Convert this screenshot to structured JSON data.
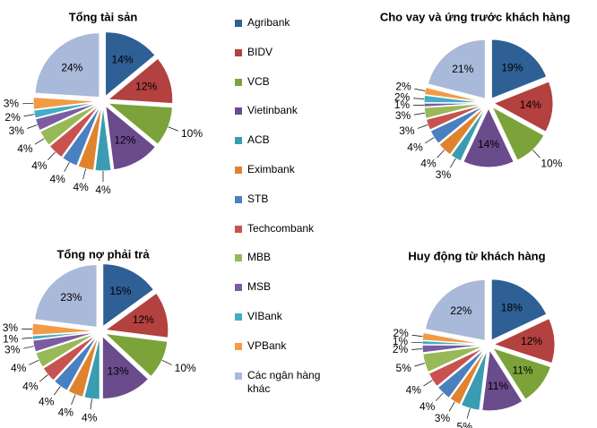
{
  "chart_data": [
    {
      "type": "pie",
      "title": "Tổng tài sản",
      "categories": [
        "Agribank",
        "BIDV",
        "VCB",
        "Vietinbank",
        "ACB",
        "Eximbank",
        "STB",
        "Techcombank",
        "MBB",
        "MSB",
        "VIBank",
        "VPBank",
        "Các ngân hàng khác"
      ],
      "colors": [
        "#2e5f95",
        "#b2413f",
        "#7ba33a",
        "#6a4b8c",
        "#3a9cb2",
        "#e0832f",
        "#4a7fc0",
        "#c8524f",
        "#97b958",
        "#7b5ca0",
        "#42adc6",
        "#f39a45",
        "#a9b9d9"
      ],
      "values": [
        14,
        12,
        10,
        12,
        4,
        4,
        4,
        4,
        4,
        3,
        2,
        3,
        24
      ],
      "value_labels": [
        "14%",
        "12%",
        "10%",
        "12%",
        "4%",
        "4%",
        "4%",
        "4%",
        "4%",
        "3%",
        "2%",
        "3%",
        "24%"
      ]
    },
    {
      "type": "pie",
      "title": "Cho vay và ứng trước khách hàng",
      "categories": [
        "Agribank",
        "BIDV",
        "VCB",
        "Vietinbank",
        "ACB",
        "Eximbank",
        "STB",
        "Techcombank",
        "MBB",
        "MSB",
        "VIBank",
        "VPBank",
        "Các ngân hàng khác"
      ],
      "colors": [
        "#2e5f95",
        "#b2413f",
        "#7ba33a",
        "#6a4b8c",
        "#3a9cb2",
        "#e0832f",
        "#4a7fc0",
        "#c8524f",
        "#97b958",
        "#7b5ca0",
        "#42adc6",
        "#f39a45",
        "#a9b9d9"
      ],
      "values": [
        19,
        14,
        10,
        14,
        3,
        4,
        4,
        3,
        3,
        1,
        2,
        2,
        21
      ],
      "value_labels": [
        "19%",
        "14%",
        "10%",
        "14%",
        "3%",
        "4%",
        "4%",
        "3%",
        "3%",
        "1%",
        "2%",
        "2%",
        "21%"
      ]
    },
    {
      "type": "pie",
      "title": "Tổng nợ phải trả",
      "categories": [
        "Agribank",
        "BIDV",
        "VCB",
        "Vietinbank",
        "ACB",
        "Eximbank",
        "STB",
        "Techcombank",
        "MBB",
        "MSB",
        "VIBank",
        "VPBank",
        "Các ngân hàng khác"
      ],
      "colors": [
        "#2e5f95",
        "#b2413f",
        "#7ba33a",
        "#6a4b8c",
        "#3a9cb2",
        "#e0832f",
        "#4a7fc0",
        "#c8524f",
        "#97b958",
        "#7b5ca0",
        "#42adc6",
        "#f39a45",
        "#a9b9d9"
      ],
      "values": [
        15,
        12,
        10,
        13,
        4,
        4,
        4,
        4,
        4,
        3,
        1,
        3,
        23
      ],
      "value_labels": [
        "15%",
        "12%",
        "10%",
        "13%",
        "4%",
        "4%",
        "4%",
        "4%",
        "4%",
        "3%",
        "1%",
        "3%",
        "23%"
      ]
    },
    {
      "type": "pie",
      "title": "Huy động từ khách hàng",
      "categories": [
        "Agribank",
        "BIDV",
        "VCB",
        "Vietinbank",
        "ACB",
        "Eximbank",
        "STB",
        "Techcombank",
        "MBB",
        "MSB",
        "VIBank",
        "VPBank",
        "Các ngân hàng khác"
      ],
      "colors": [
        "#2e5f95",
        "#b2413f",
        "#7ba33a",
        "#6a4b8c",
        "#3a9cb2",
        "#e0832f",
        "#4a7fc0",
        "#c8524f",
        "#97b958",
        "#7b5ca0",
        "#42adc6",
        "#f39a45",
        "#a9b9d9"
      ],
      "values": [
        18,
        12,
        11,
        11,
        5,
        3,
        4,
        4,
        5,
        2,
        1,
        2,
        22
      ],
      "value_labels": [
        "18%",
        "12%",
        "11%",
        "11%",
        "5%",
        "3%",
        "4%",
        "4%",
        "5%",
        "2%",
        "1%",
        "2%",
        "22%"
      ]
    }
  ]
}
